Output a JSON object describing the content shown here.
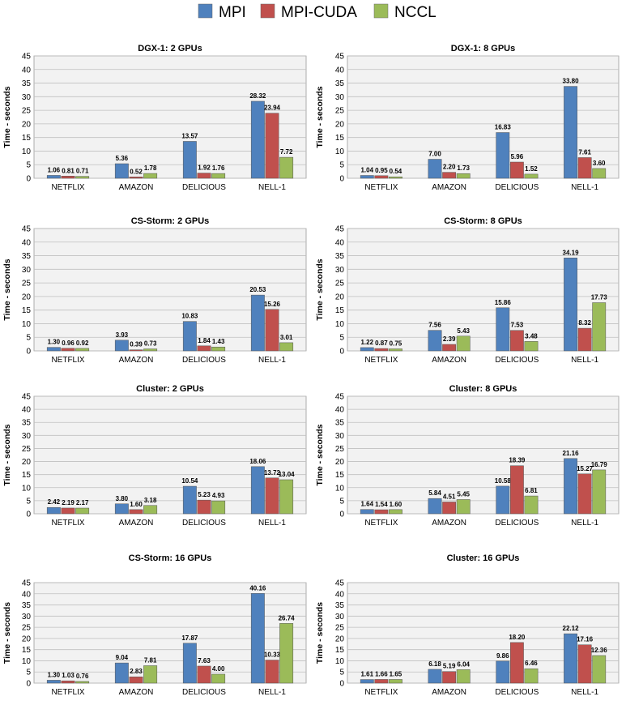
{
  "colors": {
    "MPI": "#4f81bd",
    "MPI-CUDA": "#c0504d",
    "NCCL": "#9bbb59",
    "grid": "#bfbfbf",
    "plot_bg": "#f2f2f2"
  },
  "legend": [
    "MPI",
    "MPI-CUDA",
    "NCCL"
  ],
  "chart_data": [
    {
      "type": "bar",
      "title": "DGX-1: 2 GPUs",
      "ylabel": "Time - seconds",
      "ylim": [
        0,
        45
      ],
      "yticks": [
        0,
        5,
        10,
        15,
        20,
        25,
        30,
        35,
        40,
        45
      ],
      "categories": [
        "NETFLIX",
        "AMAZON",
        "DELICIOUS",
        "NELL-1"
      ],
      "series": [
        {
          "name": "MPI",
          "values": [
            1.06,
            5.36,
            13.57,
            28.32
          ]
        },
        {
          "name": "MPI-CUDA",
          "values": [
            0.81,
            0.52,
            1.92,
            23.94
          ]
        },
        {
          "name": "NCCL",
          "values": [
            0.71,
            1.78,
            1.76,
            7.72
          ]
        }
      ]
    },
    {
      "type": "bar",
      "title": "DGX-1: 8 GPUs",
      "ylabel": "Time - seconds",
      "ylim": [
        0,
        45
      ],
      "yticks": [
        0,
        5,
        10,
        15,
        20,
        25,
        30,
        35,
        40,
        45
      ],
      "categories": [
        "NETFLIX",
        "AMAZON",
        "DELICIOUS",
        "NELL-1"
      ],
      "series": [
        {
          "name": "MPI",
          "values": [
            1.04,
            7.0,
            16.83,
            33.8
          ]
        },
        {
          "name": "MPI-CUDA",
          "values": [
            0.95,
            2.2,
            5.96,
            7.61
          ]
        },
        {
          "name": "NCCL",
          "values": [
            0.54,
            1.73,
            1.52,
            3.6
          ]
        }
      ]
    },
    {
      "type": "bar",
      "title": "CS-Storm: 2 GPUs",
      "ylabel": "Time - seconds",
      "ylim": [
        0,
        45
      ],
      "yticks": [
        0,
        5,
        10,
        15,
        20,
        25,
        30,
        35,
        40,
        45
      ],
      "categories": [
        "NETFLIX",
        "AMAZON",
        "DELICIOUS",
        "NELL-1"
      ],
      "series": [
        {
          "name": "MPI",
          "values": [
            1.3,
            3.93,
            10.83,
            20.53
          ]
        },
        {
          "name": "MPI-CUDA",
          "values": [
            0.96,
            0.39,
            1.84,
            15.26
          ]
        },
        {
          "name": "NCCL",
          "values": [
            0.92,
            0.73,
            1.43,
            3.01
          ]
        }
      ]
    },
    {
      "type": "bar",
      "title": "CS-Storm: 8 GPUs",
      "ylabel": "Time - seconds",
      "ylim": [
        0,
        45
      ],
      "yticks": [
        0,
        5,
        10,
        15,
        20,
        25,
        30,
        35,
        40,
        45
      ],
      "categories": [
        "NETFLIX",
        "AMAZON",
        "DELICIOUS",
        "NELL-1"
      ],
      "series": [
        {
          "name": "MPI",
          "values": [
            1.22,
            7.56,
            15.86,
            34.19
          ]
        },
        {
          "name": "MPI-CUDA",
          "values": [
            0.87,
            2.39,
            7.53,
            8.32
          ]
        },
        {
          "name": "NCCL",
          "values": [
            0.75,
            5.43,
            3.48,
            17.73
          ]
        }
      ]
    },
    {
      "type": "bar",
      "title": "Cluster: 2 GPUs",
      "ylabel": "Time - seconds",
      "ylim": [
        0,
        45
      ],
      "yticks": [
        0,
        5,
        10,
        15,
        20,
        25,
        30,
        35,
        40,
        45
      ],
      "categories": [
        "NETFLIX",
        "AMAZON",
        "DELICIOUS",
        "NELL-1"
      ],
      "series": [
        {
          "name": "MPI",
          "values": [
            2.42,
            3.8,
            10.54,
            18.06
          ]
        },
        {
          "name": "MPI-CUDA",
          "values": [
            2.19,
            1.6,
            5.23,
            13.72
          ]
        },
        {
          "name": "NCCL",
          "values": [
            2.17,
            3.18,
            4.93,
            13.04
          ]
        }
      ]
    },
    {
      "type": "bar",
      "title": "Cluster: 8 GPUs",
      "ylabel": "Time - seconds",
      "ylim": [
        0,
        45
      ],
      "yticks": [
        0,
        5,
        10,
        15,
        20,
        25,
        30,
        35,
        40,
        45
      ],
      "categories": [
        "NETFLIX",
        "AMAZON",
        "DELICIOUS",
        "NELL-1"
      ],
      "series": [
        {
          "name": "MPI",
          "values": [
            1.64,
            5.84,
            10.58,
            21.16
          ]
        },
        {
          "name": "MPI-CUDA",
          "values": [
            1.54,
            4.51,
            18.39,
            15.27
          ]
        },
        {
          "name": "NCCL",
          "values": [
            1.6,
            5.45,
            6.81,
            16.79
          ]
        }
      ]
    },
    {
      "type": "bar",
      "title": "CS-Storm: 16 GPUs",
      "ylabel": "Time - seconds",
      "ylim": [
        0,
        45
      ],
      "yticks": [
        0,
        5,
        10,
        15,
        20,
        25,
        30,
        35,
        40,
        45
      ],
      "categories": [
        "NETFLIX",
        "AMAZON",
        "DELICIOUS",
        "NELL-1"
      ],
      "series": [
        {
          "name": "MPI",
          "values": [
            1.3,
            9.04,
            17.87,
            40.16
          ]
        },
        {
          "name": "MPI-CUDA",
          "values": [
            1.03,
            2.83,
            7.63,
            10.33
          ]
        },
        {
          "name": "NCCL",
          "values": [
            0.76,
            7.81,
            4.0,
            26.74
          ]
        }
      ]
    },
    {
      "type": "bar",
      "title": "Cluster: 16 GPUs",
      "ylabel": "Time - seconds",
      "ylim": [
        0,
        45
      ],
      "yticks": [
        0,
        5,
        10,
        15,
        20,
        25,
        30,
        35,
        40,
        45
      ],
      "categories": [
        "NETFLIX",
        "AMAZON",
        "DELICIOUS",
        "NELL-1"
      ],
      "series": [
        {
          "name": "MPI",
          "values": [
            1.61,
            6.18,
            9.86,
            22.12
          ]
        },
        {
          "name": "MPI-CUDA",
          "values": [
            1.66,
            5.19,
            18.2,
            17.16
          ]
        },
        {
          "name": "NCCL",
          "values": [
            1.65,
            6.04,
            6.46,
            12.36
          ]
        }
      ]
    }
  ]
}
